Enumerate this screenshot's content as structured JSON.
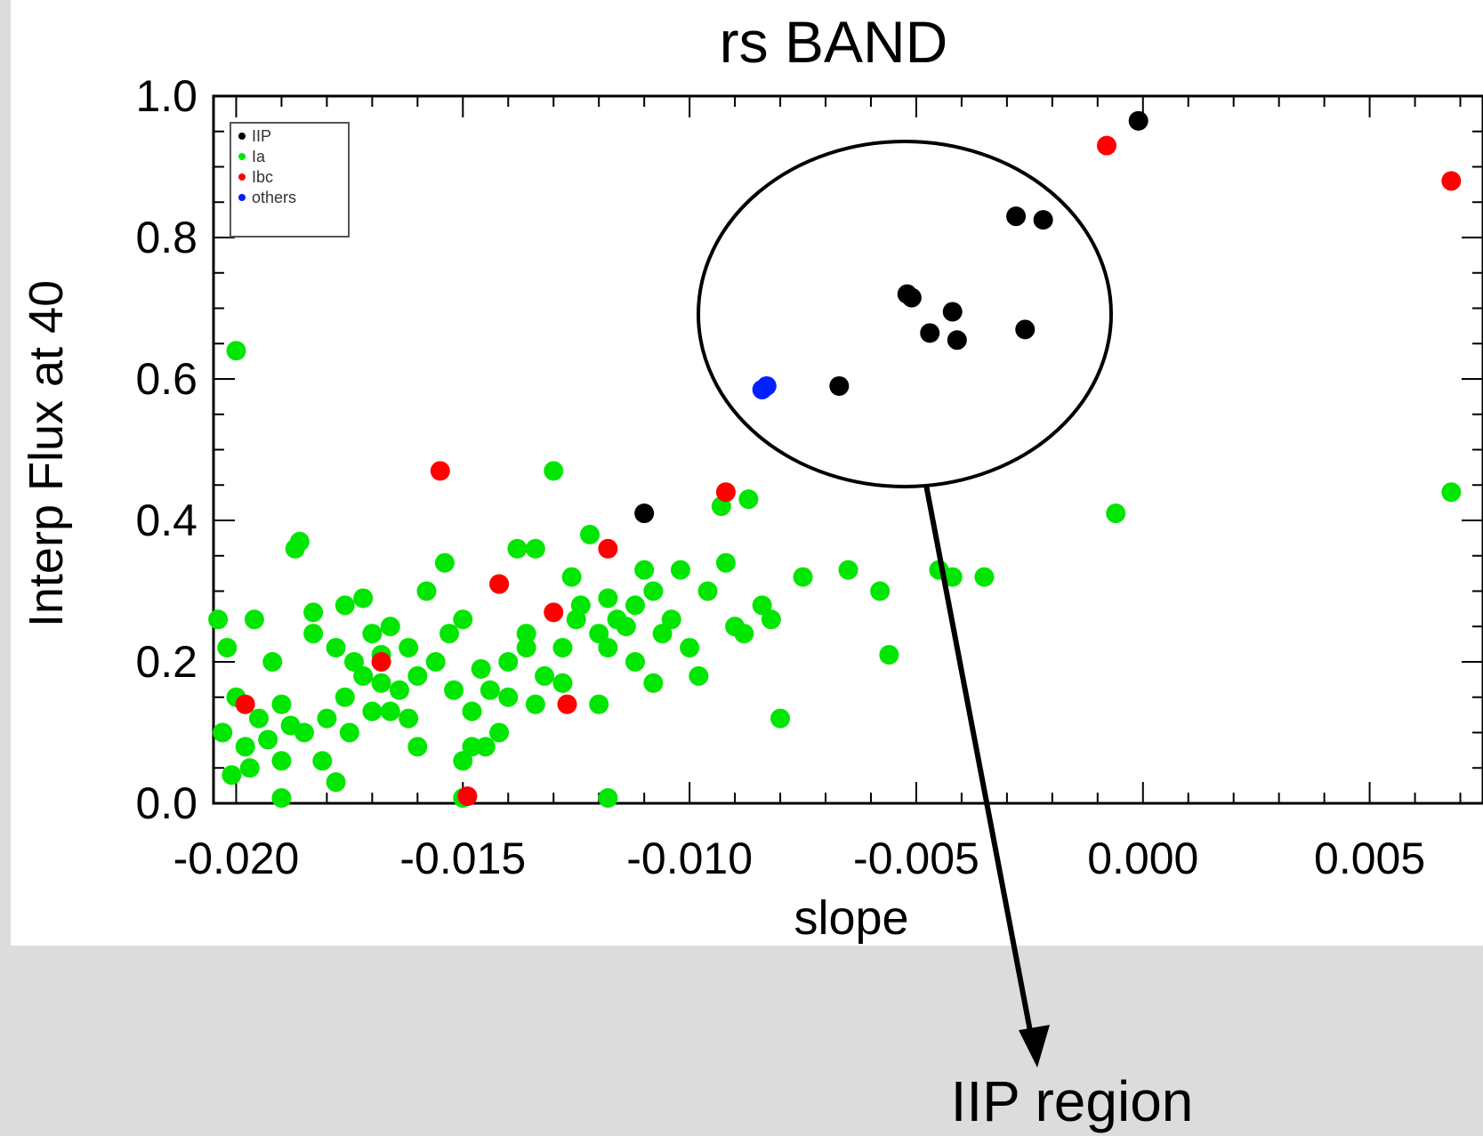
{
  "chart_data": {
    "type": "scatter",
    "title": "rs BAND",
    "xlabel": "slope",
    "ylabel": "Interp Flux at 40",
    "xlim": [
      -0.0205,
      0.0075
    ],
    "ylim": [
      0.0,
      1.0
    ],
    "xticks": [
      -0.02,
      -0.015,
      -0.01,
      -0.005,
      0.0,
      0.005
    ],
    "xtick_labels": [
      "-0.020",
      "-0.015",
      "-0.010",
      "-0.005",
      "0.000",
      "0.005"
    ],
    "yticks": [
      0.0,
      0.2,
      0.4,
      0.6,
      0.8,
      1.0
    ],
    "ytick_labels": [
      "0.0",
      "0.2",
      "0.4",
      "0.6",
      "0.8",
      "1.0"
    ],
    "grid": false,
    "legend_position": "top-left",
    "series": [
      {
        "name": "IIP",
        "color": "#000000",
        "points": [
          [
            -0.011,
            0.41
          ],
          [
            -0.0067,
            0.59
          ],
          [
            -0.0052,
            0.72
          ],
          [
            -0.0051,
            0.715
          ],
          [
            -0.0042,
            0.695
          ],
          [
            -0.0047,
            0.665
          ],
          [
            -0.0041,
            0.655
          ],
          [
            -0.0026,
            0.67
          ],
          [
            -0.0028,
            0.83
          ],
          [
            -0.0022,
            0.825
          ],
          [
            -0.0001,
            0.965
          ]
        ]
      },
      {
        "name": "Ia",
        "color": "#00e600",
        "points": [
          [
            -0.02,
            0.64
          ],
          [
            -0.0204,
            0.26
          ],
          [
            -0.0202,
            0.22
          ],
          [
            -0.0196,
            0.26
          ],
          [
            -0.0205,
            0.16
          ],
          [
            -0.02,
            0.15
          ],
          [
            -0.0195,
            0.12
          ],
          [
            -0.019,
            0.14
          ],
          [
            -0.0203,
            0.1
          ],
          [
            -0.0198,
            0.08
          ],
          [
            -0.0193,
            0.09
          ],
          [
            -0.0188,
            0.11
          ],
          [
            -0.0201,
            0.04
          ],
          [
            -0.0197,
            0.05
          ],
          [
            -0.019,
            0.06
          ],
          [
            -0.0185,
            0.1
          ],
          [
            -0.018,
            0.12
          ],
          [
            -0.0176,
            0.15
          ],
          [
            -0.0172,
            0.18
          ],
          [
            -0.0168,
            0.17
          ],
          [
            -0.0164,
            0.16
          ],
          [
            -0.016,
            0.18
          ],
          [
            -0.0156,
            0.2
          ],
          [
            -0.0152,
            0.16
          ],
          [
            -0.0148,
            0.13
          ],
          [
            -0.0144,
            0.16
          ],
          [
            -0.014,
            0.2
          ],
          [
            -0.0136,
            0.24
          ],
          [
            -0.0132,
            0.18
          ],
          [
            -0.0128,
            0.22
          ],
          [
            -0.0124,
            0.28
          ],
          [
            -0.012,
            0.24
          ],
          [
            -0.0116,
            0.26
          ],
          [
            -0.0112,
            0.28
          ],
          [
            -0.0108,
            0.3
          ],
          [
            -0.0104,
            0.26
          ],
          [
            -0.01,
            0.22
          ],
          [
            -0.0096,
            0.3
          ],
          [
            -0.0092,
            0.34
          ],
          [
            -0.0088,
            0.24
          ],
          [
            -0.0186,
            0.37
          ],
          [
            -0.0187,
            0.36
          ],
          [
            -0.0183,
            0.27
          ],
          [
            -0.0178,
            0.22
          ],
          [
            -0.0174,
            0.2
          ],
          [
            -0.017,
            0.24
          ],
          [
            -0.0166,
            0.13
          ],
          [
            -0.0162,
            0.22
          ],
          [
            -0.0158,
            0.3
          ],
          [
            -0.0154,
            0.34
          ],
          [
            -0.015,
            0.26
          ],
          [
            -0.0146,
            0.19
          ],
          [
            -0.0142,
            0.31
          ],
          [
            -0.0138,
            0.36
          ],
          [
            -0.0134,
            0.36
          ],
          [
            -0.013,
            0.47
          ],
          [
            -0.0126,
            0.32
          ],
          [
            -0.0122,
            0.38
          ],
          [
            -0.0118,
            0.29
          ],
          [
            -0.0114,
            0.25
          ],
          [
            -0.011,
            0.33
          ],
          [
            -0.0106,
            0.24
          ],
          [
            -0.0102,
            0.33
          ],
          [
            -0.0098,
            0.18
          ],
          [
            -0.0093,
            0.42
          ],
          [
            -0.0087,
            0.43
          ],
          [
            -0.0084,
            0.28
          ],
          [
            -0.0082,
            0.26
          ],
          [
            -0.008,
            0.12
          ],
          [
            -0.0075,
            0.32
          ],
          [
            -0.0065,
            0.33
          ],
          [
            -0.0058,
            0.3
          ],
          [
            -0.0056,
            0.21
          ],
          [
            -0.0045,
            0.33
          ],
          [
            -0.0042,
            0.32
          ],
          [
            -0.0035,
            0.32
          ],
          [
            -0.0006,
            0.41
          ],
          [
            -0.017,
            0.13
          ],
          [
            -0.0175,
            0.1
          ],
          [
            -0.0181,
            0.06
          ],
          [
            -0.0178,
            0.03
          ],
          [
            -0.016,
            0.08
          ],
          [
            -0.015,
            0.06
          ],
          [
            -0.0145,
            0.08
          ],
          [
            -0.014,
            0.15
          ],
          [
            -0.0134,
            0.14
          ],
          [
            -0.0128,
            0.17
          ],
          [
            -0.0118,
            0.22
          ],
          [
            -0.0112,
            0.2
          ],
          [
            -0.009,
            0.25
          ],
          [
            -0.0118,
            0.0
          ],
          [
            -0.015,
            0.0
          ],
          [
            -0.019,
            0.0
          ],
          [
            -0.0192,
            0.2
          ],
          [
            -0.0183,
            0.24
          ],
          [
            -0.0176,
            0.28
          ],
          [
            -0.0172,
            0.29
          ],
          [
            -0.0168,
            0.21
          ],
          [
            -0.0166,
            0.25
          ],
          [
            -0.0162,
            0.12
          ],
          [
            -0.0153,
            0.24
          ],
          [
            -0.0148,
            0.08
          ],
          [
            -0.0142,
            0.1
          ],
          [
            -0.0136,
            0.22
          ],
          [
            -0.0125,
            0.26
          ],
          [
            -0.012,
            0.14
          ],
          [
            -0.0108,
            0.17
          ],
          [
            0.0068,
            0.44
          ]
        ]
      },
      {
        "name": "Ibc",
        "color": "#ff0000",
        "points": [
          [
            -0.0198,
            0.14
          ],
          [
            -0.0168,
            0.2
          ],
          [
            -0.0155,
            0.47
          ],
          [
            -0.0149,
            0.01
          ],
          [
            -0.0142,
            0.31
          ],
          [
            -0.013,
            0.27
          ],
          [
            -0.0127,
            0.14
          ],
          [
            -0.0118,
            0.36
          ],
          [
            -0.0092,
            0.44
          ],
          [
            -0.0008,
            0.93
          ],
          [
            0.0068,
            0.88
          ]
        ]
      },
      {
        "name": "others",
        "color": "#0020ff",
        "points": [
          [
            -0.0083,
            0.59
          ],
          [
            -0.0084,
            0.585
          ]
        ]
      }
    ],
    "annotation": "IIP region"
  }
}
